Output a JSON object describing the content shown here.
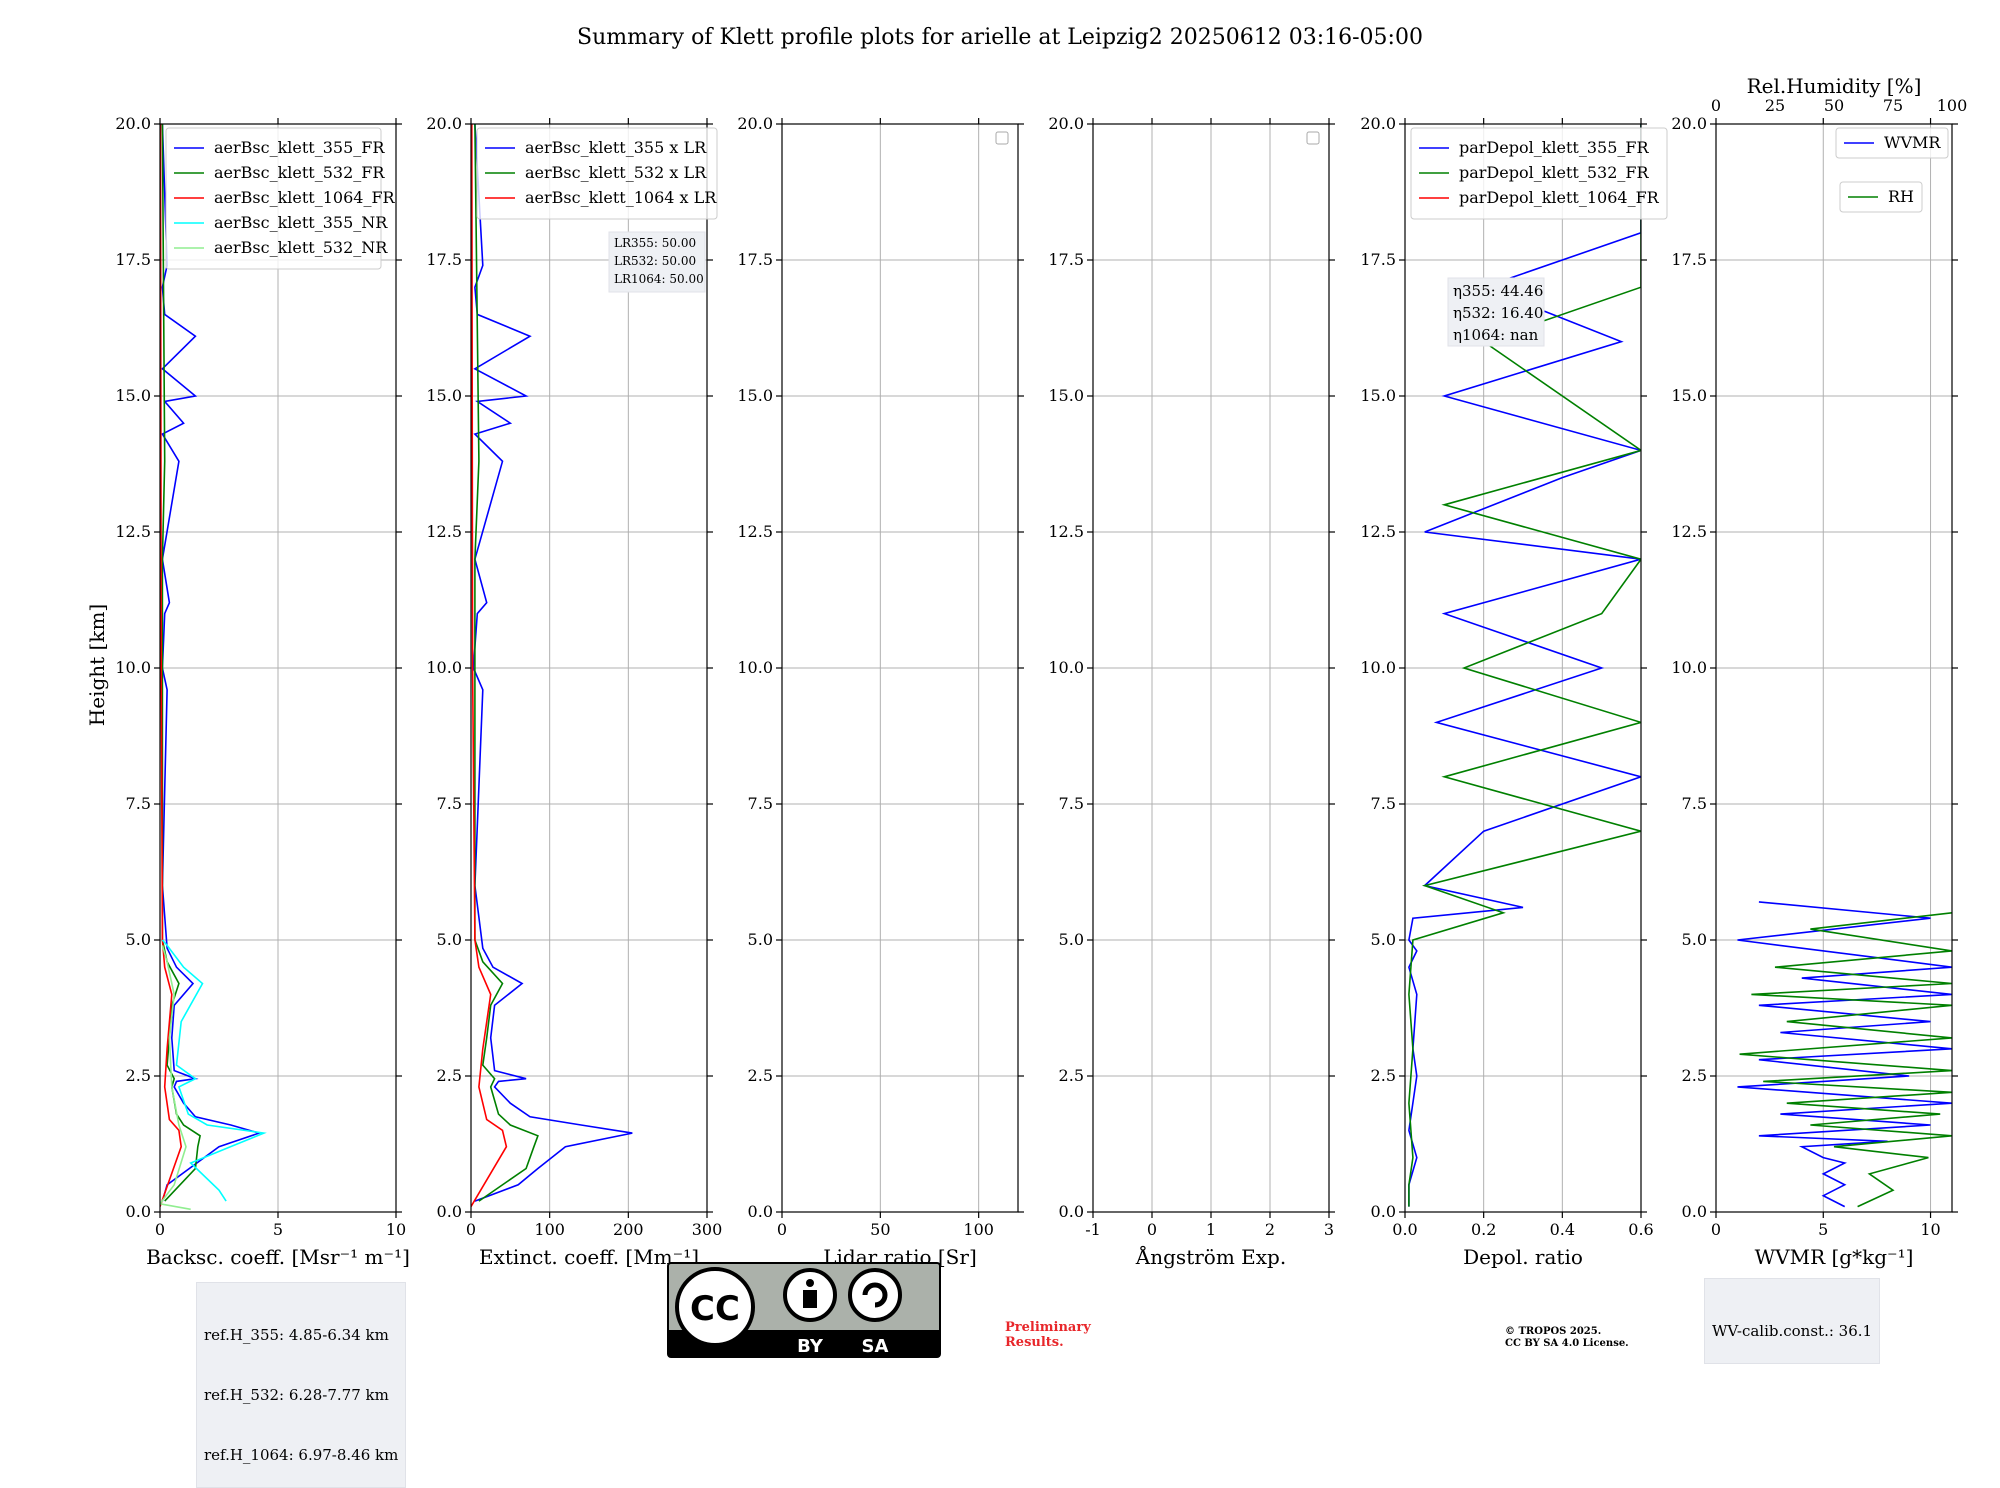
{
  "title": "Summary of Klett profile plots for arielle at Leipzig2 20250612 03:16-05:00",
  "y_axis_label": "Height [km]",
  "ref_heights": [
    "ref.H_355: 4.85-6.34 km",
    "ref.H_532: 6.28-7.77 km",
    "ref.H_1064: 6.97-8.46 km"
  ],
  "wv_calib": "WV-calib.const.: 36.1",
  "preliminary": [
    "Preliminary",
    "Results."
  ],
  "copyright": [
    "© TROPOS 2025.",
    "CC BY SA 4.0 License."
  ],
  "license_badge": {
    "cc": "CC",
    "by": "BY",
    "sa": "SA"
  },
  "colors": {
    "blue": "#0000ff",
    "green": "#008000",
    "red": "#ff0000",
    "cyan": "#00ffff",
    "lightgreen": "#90ee90",
    "grid": "#b0b0b0"
  },
  "chart_data": [
    {
      "type": "line",
      "id": "backscatter",
      "xlabel": "Backsc. coeff. [Msr⁻¹ m⁻¹]",
      "ylabel": "Height [km]",
      "xlim": [
        0,
        10
      ],
      "xticks": [
        0,
        5,
        10
      ],
      "ylim": [
        0,
        20
      ],
      "yticks": [
        0.0,
        2.5,
        5.0,
        7.5,
        10.0,
        12.5,
        15.0,
        17.5,
        20.0
      ],
      "legend": "top-left",
      "series": [
        {
          "name": "aerBsc_klett_355_FR",
          "color": "#0000ff",
          "x": [
            0.1,
            0.3,
            2.5,
            4.2,
            3.0,
            1.5,
            1.0,
            0.6,
            0.7,
            1.5,
            0.6,
            0.5,
            0.6,
            1.4,
            0.7,
            0.3,
            0.1,
            0.3,
            0.1,
            0.2,
            0.4,
            0.1,
            0.8,
            0.1,
            1.0,
            0.2,
            1.5,
            0.1,
            1.5,
            0.2,
            0.1,
            0.3,
            0.1
          ],
          "y": [
            0.2,
            0.5,
            1.2,
            1.45,
            1.6,
            1.75,
            2.0,
            2.3,
            2.4,
            2.45,
            2.6,
            3.2,
            3.8,
            4.2,
            4.5,
            4.85,
            6.0,
            9.6,
            10.0,
            11.0,
            11.2,
            12.0,
            13.8,
            14.3,
            14.5,
            14.9,
            15.0,
            15.5,
            16.1,
            16.5,
            17.0,
            17.4,
            20.0
          ]
        },
        {
          "name": "aerBsc_klett_532_FR",
          "color": "#008000",
          "x": [
            0.2,
            1.5,
            1.6,
            1.7,
            1.0,
            0.7,
            0.5,
            0.6,
            0.3,
            0.4,
            0.5,
            0.8,
            0.3,
            0.1,
            0.1,
            0.2,
            0.1
          ],
          "y": [
            0.2,
            0.8,
            1.2,
            1.4,
            1.6,
            1.8,
            2.3,
            2.45,
            2.7,
            3.2,
            3.8,
            4.2,
            4.6,
            5.0,
            12.0,
            13.8,
            20.0
          ]
        },
        {
          "name": "aerBsc_klett_1064_FR",
          "color": "#ff0000",
          "x": [
            0.0,
            0.9,
            0.8,
            0.4,
            0.2,
            0.3,
            0.5,
            0.2,
            0.1,
            0.05,
            0.02
          ],
          "y": [
            0.1,
            1.2,
            1.5,
            1.7,
            2.3,
            3.0,
            4.0,
            4.5,
            5.0,
            10.0,
            20.0
          ]
        },
        {
          "name": "aerBsc_klett_355_NR",
          "color": "#00ffff",
          "x": [
            2.8,
            2.5,
            1.3,
            4.4,
            2.0,
            1.2,
            0.8,
            1.5,
            0.7,
            0.9,
            1.8,
            1.0,
            0.3,
            0.1
          ],
          "y": [
            0.2,
            0.4,
            0.9,
            1.45,
            1.6,
            1.8,
            2.3,
            2.45,
            2.7,
            3.5,
            4.2,
            4.5,
            4.9,
            5.0
          ]
        },
        {
          "name": "aerBsc_klett_532_NR",
          "color": "#90ee90",
          "x": [
            1.3,
            0.0,
            0.6,
            1.1,
            0.8,
            0.5,
            0.4,
            0.6,
            0.3,
            0.1
          ],
          "y": [
            0.05,
            0.15,
            0.5,
            1.2,
            1.6,
            2.3,
            3.2,
            4.0,
            4.6,
            4.9
          ]
        }
      ]
    },
    {
      "type": "line",
      "id": "extinction",
      "xlabel": "Extinct. coeff. [Mm⁻¹]",
      "xlim": [
        0,
        300
      ],
      "xticks": [
        0,
        100,
        200,
        300
      ],
      "ylim": [
        0,
        20
      ],
      "yticks": [
        0.0,
        2.5,
        5.0,
        7.5,
        10.0,
        12.5,
        15.0,
        17.5,
        20.0
      ],
      "legend": "top-left",
      "annotation": [
        "LR355: 50.00",
        "LR532: 50.00",
        "LR1064: 50.00"
      ],
      "series": [
        {
          "name": "aerBsc_klett_355 x LR",
          "color": "#0000ff",
          "x": [
            5,
            60,
            85,
            120,
            205,
            140,
            75,
            50,
            30,
            35,
            70,
            30,
            25,
            30,
            65,
            28,
            15,
            5,
            15,
            3,
            8,
            20,
            5,
            40,
            5,
            50,
            8,
            70,
            5,
            75,
            8,
            5,
            15,
            5
          ],
          "y": [
            0.2,
            0.5,
            0.8,
            1.2,
            1.45,
            1.6,
            1.75,
            2.0,
            2.3,
            2.4,
            2.45,
            2.6,
            3.2,
            3.8,
            4.2,
            4.5,
            4.85,
            6.0,
            9.6,
            10.0,
            11.0,
            11.2,
            12.0,
            13.8,
            14.3,
            14.5,
            14.9,
            15.0,
            15.5,
            16.1,
            16.5,
            17.0,
            17.4,
            20.0
          ]
        },
        {
          "name": "aerBsc_klett_532 x LR",
          "color": "#008000",
          "x": [
            10,
            70,
            80,
            85,
            50,
            35,
            25,
            30,
            15,
            20,
            25,
            40,
            15,
            5,
            5,
            10,
            5
          ],
          "y": [
            0.2,
            0.8,
            1.2,
            1.4,
            1.6,
            1.8,
            2.3,
            2.45,
            2.7,
            3.2,
            3.8,
            4.2,
            4.6,
            5.0,
            12.0,
            13.8,
            20.0
          ]
        },
        {
          "name": "aerBsc_klett_1064 x LR",
          "color": "#ff0000",
          "x": [
            0,
            45,
            40,
            20,
            10,
            15,
            25,
            10,
            5,
            2,
            1
          ],
          "y": [
            0.1,
            1.2,
            1.5,
            1.7,
            2.3,
            3.0,
            4.0,
            4.5,
            5.0,
            10.0,
            20.0
          ]
        }
      ]
    },
    {
      "type": "line",
      "id": "lidar-ratio",
      "xlabel": "Lidar ratio [Sr]",
      "xlim": [
        0,
        120
      ],
      "xticks": [
        0,
        50,
        100
      ],
      "ylim": [
        0,
        20
      ],
      "yticks": [
        0.0,
        2.5,
        5.0,
        7.5,
        10.0,
        12.5,
        15.0,
        17.5,
        20.0
      ],
      "legend": "top-right",
      "series": []
    },
    {
      "type": "line",
      "id": "angstrom",
      "xlabel": "Ångström Exp.",
      "xlim": [
        -1,
        3
      ],
      "xticks": [
        -1,
        0,
        1,
        2,
        3
      ],
      "ylim": [
        0,
        20
      ],
      "yticks": [
        0.0,
        2.5,
        5.0,
        7.5,
        10.0,
        12.5,
        15.0,
        17.5,
        20.0
      ],
      "legend": "top-right",
      "series": []
    },
    {
      "type": "line",
      "id": "depol",
      "xlabel": "Depol. ratio",
      "xlim": [
        0,
        0.6
      ],
      "xticks": [
        0.0,
        0.2,
        0.4,
        0.6
      ],
      "ylim": [
        0,
        20
      ],
      "yticks": [
        0.0,
        2.5,
        5.0,
        7.5,
        10.0,
        12.5,
        15.0,
        17.5,
        20.0
      ],
      "legend": "top-left",
      "annotation": [
        "η355: 44.46",
        "η532: 16.40",
        "η1064: nan"
      ],
      "series": [
        {
          "name": "parDepol_klett_355_FR",
          "color": "#0000ff",
          "x": [
            0.01,
            0.01,
            0.03,
            0.01,
            0.03,
            0.02,
            0.03,
            0.01,
            0.03,
            0.01,
            0.02,
            0.3,
            0.05,
            0.2,
            0.6,
            0.08,
            0.5,
            0.1,
            0.6,
            0.05,
            0.4,
            0.6,
            0.1,
            0.55,
            0.2,
            0.6,
            0.6
          ],
          "y": [
            0.1,
            0.5,
            1.0,
            1.5,
            2.5,
            3.0,
            4.0,
            4.5,
            4.8,
            5.0,
            5.4,
            5.6,
            6.0,
            7.0,
            8.0,
            9.0,
            10.0,
            11.0,
            12.0,
            12.5,
            13.5,
            14.0,
            15.0,
            16.0,
            17.0,
            18.0,
            20.0
          ]
        },
        {
          "name": "parDepol_klett_532_FR",
          "color": "#008000",
          "x": [
            0.01,
            0.01,
            0.02,
            0.01,
            0.02,
            0.01,
            0.02,
            0.25,
            0.05,
            0.6,
            0.1,
            0.6,
            0.15,
            0.5,
            0.6,
            0.1,
            0.6,
            0.2,
            0.6,
            0.6
          ],
          "y": [
            0.1,
            0.5,
            1.0,
            2.0,
            3.0,
            4.0,
            5.0,
            5.5,
            6.0,
            7.0,
            8.0,
            9.0,
            10.0,
            11.0,
            12.0,
            13.0,
            14.0,
            16.0,
            17.0,
            20.0
          ]
        },
        {
          "name": "parDepol_klett_1064_FR",
          "color": "#ff0000",
          "x": [],
          "y": []
        }
      ]
    },
    {
      "type": "line",
      "id": "wvmr",
      "xlabel": "WVMR [g*kg⁻¹]",
      "xlim": [
        0,
        11
      ],
      "xticks": [
        0,
        5,
        10
      ],
      "x2label": "Rel.Humidity [%]",
      "x2lim": [
        0,
        100
      ],
      "x2ticks": [
        0,
        25,
        50,
        75,
        100
      ],
      "ylim": [
        0,
        20
      ],
      "yticks": [
        0.0,
        2.5,
        5.0,
        7.5,
        10.0,
        12.5,
        15.0,
        17.5,
        20.0
      ],
      "legend": "top-right",
      "series": [
        {
          "name": "WVMR",
          "color": "#0000ff",
          "x": [
            6,
            5,
            6,
            5,
            6,
            5,
            4,
            8,
            2,
            10,
            3,
            11,
            1,
            9,
            2,
            11,
            3,
            10,
            2,
            11,
            4,
            11,
            1,
            10,
            2
          ],
          "y": [
            0.1,
            0.3,
            0.5,
            0.7,
            0.9,
            1.0,
            1.2,
            1.3,
            1.4,
            1.6,
            1.8,
            2.0,
            2.3,
            2.5,
            2.8,
            3.0,
            3.3,
            3.5,
            3.8,
            4.0,
            4.3,
            4.5,
            5.0,
            5.4,
            5.7
          ]
        },
        {
          "name": "RH",
          "color": "#008000",
          "x": [
            60,
            75,
            65,
            90,
            50,
            100,
            40,
            95,
            30,
            100,
            20,
            100,
            10,
            100,
            30,
            100,
            15,
            100,
            25,
            100,
            40,
            100
          ],
          "y": [
            0.1,
            0.4,
            0.7,
            1.0,
            1.2,
            1.4,
            1.6,
            1.8,
            2.0,
            2.2,
            2.4,
            2.6,
            2.9,
            3.2,
            3.5,
            3.8,
            4.0,
            4.2,
            4.5,
            4.8,
            5.2,
            5.5
          ]
        }
      ]
    }
  ]
}
